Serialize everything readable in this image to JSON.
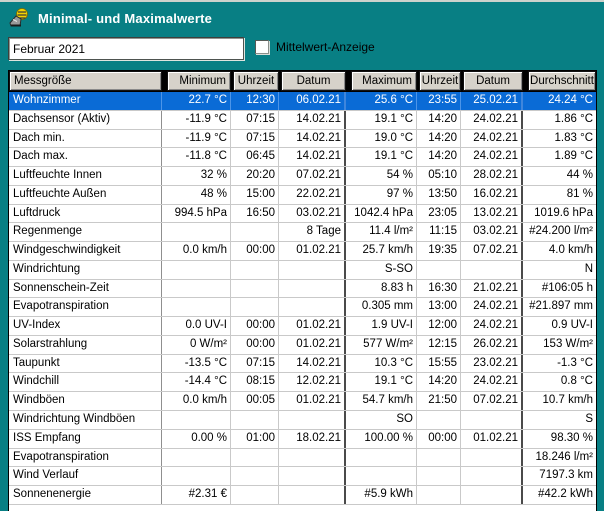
{
  "window": {
    "title": "Minimal- und Maximalwerte",
    "icon": "weather-app-icon"
  },
  "controls": {
    "period_value": "Februar 2021",
    "mittelwert_label": "Mittelwert-Anzeige",
    "mittelwert_checked": false
  },
  "table": {
    "headers": [
      "Messgröße",
      "Minimum",
      "Uhrzeit",
      "Datum",
      "Maximum",
      "Uhrzeit",
      "Datum",
      "Durchschnitt"
    ],
    "selected_row_index": 0,
    "rows": [
      [
        "Wohnzimmer",
        "22.7 °C",
        "12:30",
        "06.02.21",
        "25.6 °C",
        "23:55",
        "25.02.21",
        "24.24 °C"
      ],
      [
        "Dachsensor (Aktiv)",
        "-11.9 °C",
        "07:15",
        "14.02.21",
        "19.1 °C",
        "14:20",
        "24.02.21",
        "1.86 °C"
      ],
      [
        "Dach min.",
        "-11.9 °C",
        "07:15",
        "14.02.21",
        "19.0 °C",
        "14:20",
        "24.02.21",
        "1.83 °C"
      ],
      [
        "Dach max.",
        "-11.8 °C",
        "06:45",
        "14.02.21",
        "19.1 °C",
        "14:20",
        "24.02.21",
        "1.89 °C"
      ],
      [
        "Luftfeuchte Innen",
        "32 %",
        "20:20",
        "07.02.21",
        "54 %",
        "05:10",
        "28.02.21",
        "44 %"
      ],
      [
        "Luftfeuchte Außen",
        "48 %",
        "15:00",
        "22.02.21",
        "97 %",
        "13:50",
        "16.02.21",
        "81 %"
      ],
      [
        "Luftdruck",
        "994.5 hPa",
        "16:50",
        "03.02.21",
        "1042.4 hPa",
        "23:05",
        "13.02.21",
        "1019.6 hPa"
      ],
      [
        "Regenmenge",
        "",
        "",
        "8 Tage",
        "11.4 l/m²",
        "11:15",
        "03.02.21",
        "#24.200 l/m²"
      ],
      [
        "Windgeschwindigkeit",
        "0.0 km/h",
        "00:00",
        "01.02.21",
        "25.7 km/h",
        "19:35",
        "07.02.21",
        "4.0 km/h"
      ],
      [
        "Windrichtung",
        "",
        "",
        "",
        "S-SO",
        "",
        "",
        "N"
      ],
      [
        "Sonnenschein-Zeit",
        "",
        "",
        "",
        "8.83 h",
        "16:30",
        "21.02.21",
        "#106:05 h"
      ],
      [
        "Evapotranspiration",
        "",
        "",
        "",
        "0.305 mm",
        "13:00",
        "24.02.21",
        "#21.897 mm"
      ],
      [
        "UV-Index",
        "0.0 UV-I",
        "00:00",
        "01.02.21",
        "1.9 UV-I",
        "12:00",
        "24.02.21",
        "0.9 UV-I"
      ],
      [
        "Solarstrahlung",
        "0 W/m²",
        "00:00",
        "01.02.21",
        "577 W/m²",
        "12:15",
        "26.02.21",
        "153 W/m²"
      ],
      [
        "Taupunkt",
        "-13.5 °C",
        "07:15",
        "14.02.21",
        "10.3 °C",
        "15:55",
        "23.02.21",
        "-1.3 °C"
      ],
      [
        "Windchill",
        "-14.4 °C",
        "08:15",
        "12.02.21",
        "19.1 °C",
        "14:20",
        "24.02.21",
        "0.8 °C"
      ],
      [
        "Windböen",
        "0.0 km/h",
        "00:05",
        "01.02.21",
        "54.7 km/h",
        "21:50",
        "07.02.21",
        "10.7 km/h"
      ],
      [
        "Windrichtung Windböen",
        "",
        "",
        "",
        "SO",
        "",
        "",
        "S"
      ],
      [
        "ISS Empfang",
        "0.00 %",
        "01:00",
        "18.02.21",
        "100.00 %",
        "00:00",
        "01.02.21",
        "98.30 %"
      ],
      [
        "Evapotranspiration",
        "",
        "",
        "",
        "",
        "",
        "",
        "18.246 l/m²"
      ],
      [
        "Wind Verlauf",
        "",
        "",
        "",
        "",
        "",
        "",
        "7197.3 km"
      ],
      [
        "Sonnenenergie",
        "#2.31 €",
        "",
        "",
        "#5.9 kWh",
        "",
        "",
        "#42.2 kWh"
      ]
    ]
  },
  "colors": {
    "teal_background": "#087f84",
    "selection_blue": "#0a6bd6",
    "header_gray": "#d6d2ca",
    "grid_line": "#c9c9c9",
    "group_line": "#4a4a4a",
    "titlebar_text": "#ffffff"
  }
}
